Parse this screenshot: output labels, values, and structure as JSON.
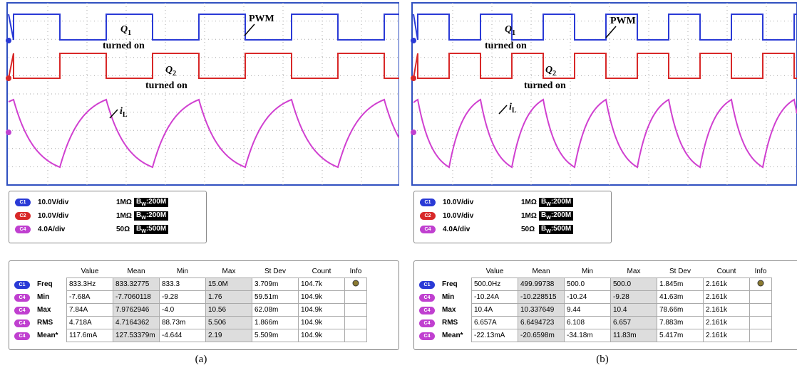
{
  "panels": [
    {
      "caption": "(a)",
      "annotations": {
        "q1": {
          "symbol": "Q",
          "sub": "1",
          "text": "turned on"
        },
        "q2": {
          "symbol": "Q",
          "sub": "2",
          "text": "turned on"
        },
        "pwm": "PWM",
        "il": {
          "symbol": "i",
          "sub": "L"
        }
      },
      "channels": [
        {
          "badge": "C1",
          "scale": "10.0V/div",
          "impedance": "1MΩ",
          "bw": {
            "prefix": "B",
            "sub": "W",
            "value": ":200M"
          }
        },
        {
          "badge": "C2",
          "scale": "10.0V/div",
          "impedance": "1MΩ",
          "bw": {
            "prefix": "B",
            "sub": "W",
            "value": ":200M"
          }
        },
        {
          "badge": "C4",
          "scale": "4.0A/div",
          "impedance": "50Ω",
          "bw": {
            "prefix": "B",
            "sub": "W",
            "value": ":500M"
          }
        }
      ],
      "table": {
        "header": [
          "Value",
          "Mean",
          "Min",
          "Max",
          "St Dev",
          "Count",
          "Info"
        ],
        "rows": [
          {
            "badge": "C1",
            "name": "Freq",
            "cells": [
              "833.3Hz",
              "833.32775",
              "833.3",
              "15.0M",
              "3.709m",
              "104.7k"
            ]
          },
          {
            "badge": "C4",
            "name": "Min",
            "cells": [
              "-7.68A",
              "-7.7060118",
              "-9.28",
              "1.76",
              "59.51m",
              "104.9k"
            ]
          },
          {
            "badge": "C4",
            "name": "Max",
            "cells": [
              "7.84A",
              "7.9762946",
              "-4.0",
              "10.56",
              "62.08m",
              "104.9k"
            ]
          },
          {
            "badge": "C4",
            "name": "RMS",
            "cells": [
              "4.718A",
              "4.7164362",
              "88.73m",
              "5.506",
              "1.866m",
              "104.9k"
            ]
          },
          {
            "badge": "C4",
            "name": "Mean*",
            "cells": [
              "117.6mA",
              "127.53379m",
              "-4.644",
              "2.19",
              "5.509m",
              "104.9k"
            ]
          }
        ]
      }
    },
    {
      "caption": "(b)",
      "annotations": {
        "q1": {
          "symbol": "Q",
          "sub": "1",
          "text": "turned on"
        },
        "q2": {
          "symbol": "Q",
          "sub": "2",
          "text": "turned on"
        },
        "pwm": "PWM",
        "il": {
          "symbol": "i",
          "sub": "L"
        }
      },
      "channels": [
        {
          "badge": "C1",
          "scale": "10.0V/div",
          "impedance": "1MΩ",
          "bw": {
            "prefix": "B",
            "sub": "W",
            "value": ":200M"
          }
        },
        {
          "badge": "C2",
          "scale": "10.0V/div",
          "impedance": "1MΩ",
          "bw": {
            "prefix": "B",
            "sub": "W",
            "value": ":200M"
          }
        },
        {
          "badge": "C4",
          "scale": "4.0A/div",
          "impedance": "50Ω",
          "bw": {
            "prefix": "B",
            "sub": "W",
            "value": ":500M"
          }
        }
      ],
      "table": {
        "header": [
          "Value",
          "Mean",
          "Min",
          "Max",
          "St Dev",
          "Count",
          "Info"
        ],
        "rows": [
          {
            "badge": "C1",
            "name": "Freq",
            "cells": [
              "500.0Hz",
              "499.99738",
              "500.0",
              "500.0",
              "1.845m",
              "2.161k"
            ]
          },
          {
            "badge": "C4",
            "name": "Min",
            "cells": [
              "-10.24A",
              "-10.228515",
              "-10.24",
              "-9.28",
              "41.63m",
              "2.161k"
            ]
          },
          {
            "badge": "C4",
            "name": "Max",
            "cells": [
              "10.4A",
              "10.337649",
              "9.44",
              "10.4",
              "78.66m",
              "2.161k"
            ]
          },
          {
            "badge": "C4",
            "name": "RMS",
            "cells": [
              "6.657A",
              "6.6494723",
              "6.108",
              "6.657",
              "7.883m",
              "2.161k"
            ]
          },
          {
            "badge": "C4",
            "name": "Mean*",
            "cells": [
              "-22.13mA",
              "-20.6598m",
              "-34.18m",
              "11.83m",
              "5.417m",
              "2.161k"
            ]
          }
        ]
      }
    }
  ]
}
